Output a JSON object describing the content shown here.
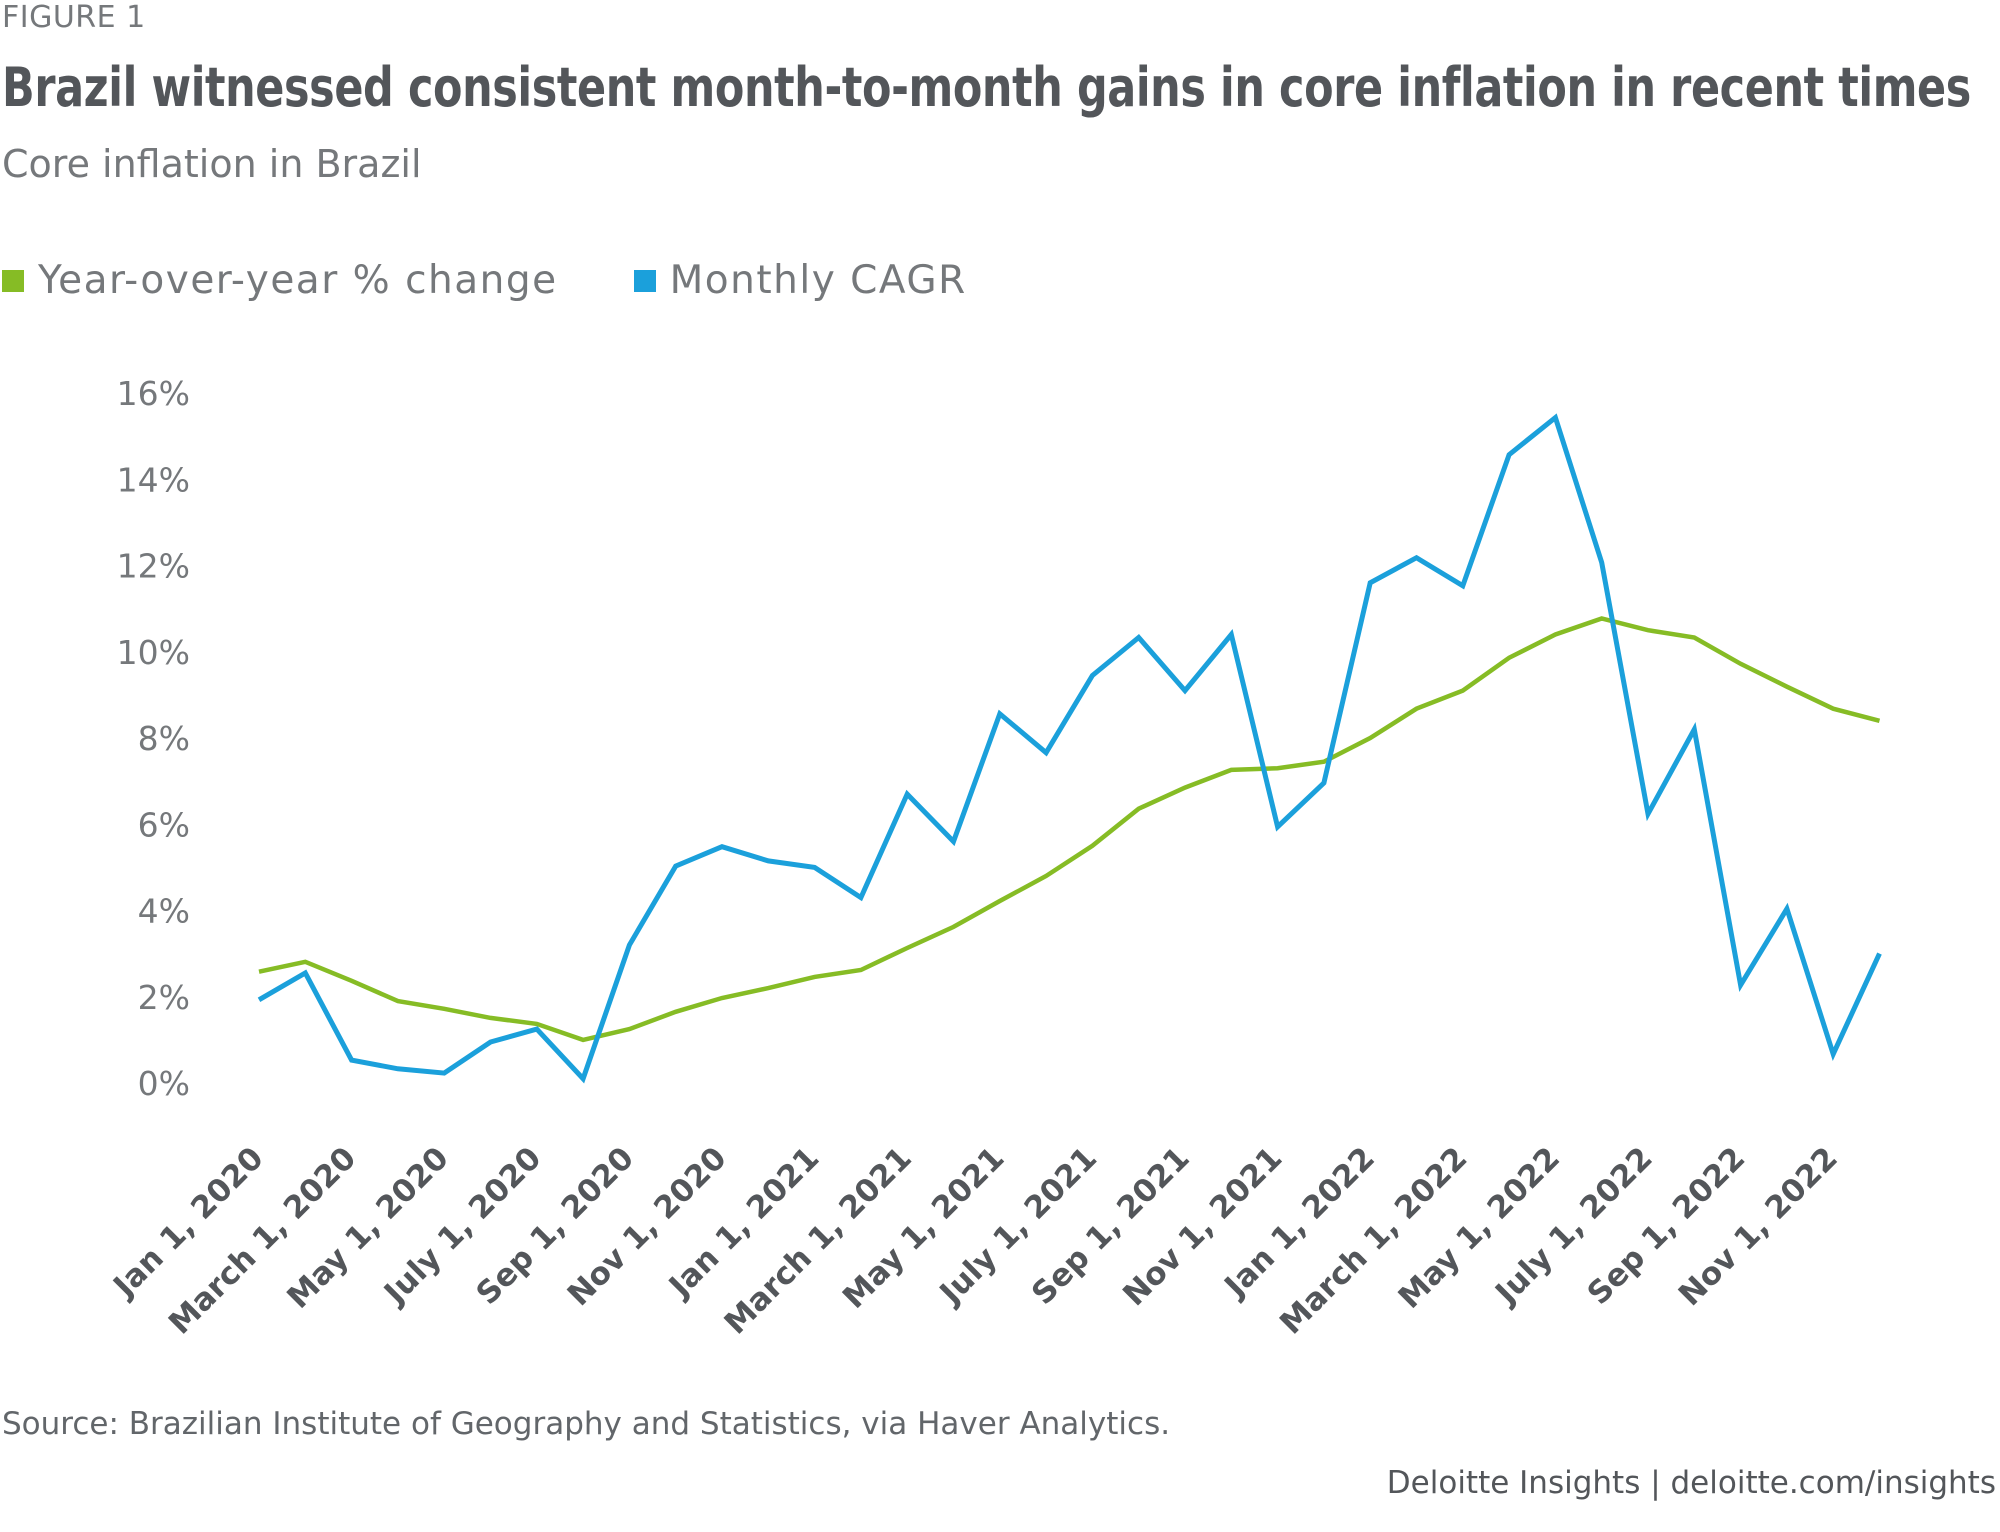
{
  "header": {
    "figure_label": "FIGURE 1",
    "title": "Brazil witnessed consistent month-to-month gains in core inflation in recent times",
    "subtitle": "Core inflation in Brazil"
  },
  "legend": [
    {
      "label": "Year-over-year % change",
      "color": "#86BC25"
    },
    {
      "label": "Monthly CAGR",
      "color": "#1BA0DB"
    }
  ],
  "footer": {
    "source": "Source: Brazilian Institute of Geography and Statistics, via Haver Analytics.",
    "credit": "Deloitte Insights | deloitte.com/insights"
  },
  "chart_data": {
    "type": "line",
    "title": "Brazil witnessed consistent month-to-month gains in core inflation in recent times",
    "subtitle": "Core inflation in Brazil",
    "xlabel": "",
    "ylabel": "",
    "ylim": [
      0,
      16
    ],
    "yticks": [
      0,
      2,
      4,
      6,
      8,
      10,
      12,
      14,
      16
    ],
    "ytick_labels": [
      "0%",
      "2%",
      "4%",
      "6%",
      "8%",
      "10%",
      "12%",
      "14%",
      "16%"
    ],
    "grid": false,
    "legend_position": "top-left",
    "x": [
      "Jan 2020",
      "Feb 2020",
      "Mar 2020",
      "Apr 2020",
      "May 2020",
      "Jun 2020",
      "Jul 2020",
      "Aug 2020",
      "Sep 2020",
      "Oct 2020",
      "Nov 2020",
      "Dec 2020",
      "Jan 2021",
      "Feb 2021",
      "Mar 2021",
      "Apr 2021",
      "May 2021",
      "Jun 2021",
      "Jul 2021",
      "Aug 2021",
      "Sep 2021",
      "Oct 2021",
      "Nov 2021",
      "Dec 2021",
      "Jan 2022",
      "Feb 2022",
      "Mar 2022",
      "Apr 2022",
      "May 2022",
      "Jun 2022",
      "Jul 2022",
      "Aug 2022",
      "Sep 2022",
      "Oct 2022",
      "Nov 2022",
      "Dec 2022"
    ],
    "xtick_labels": [
      {
        "index": 0,
        "label": "Jan 1, 2020"
      },
      {
        "index": 2,
        "label": "March 1, 2020"
      },
      {
        "index": 4,
        "label": "May 1, 2020"
      },
      {
        "index": 6,
        "label": "July 1, 2020"
      },
      {
        "index": 8,
        "label": "Sep 1, 2020"
      },
      {
        "index": 10,
        "label": "Nov 1, 2020"
      },
      {
        "index": 12,
        "label": "Jan 1, 2021"
      },
      {
        "index": 14,
        "label": "March 1, 2021"
      },
      {
        "index": 16,
        "label": "May 1, 2021"
      },
      {
        "index": 18,
        "label": "July 1, 2021"
      },
      {
        "index": 20,
        "label": "Sep 1, 2021"
      },
      {
        "index": 22,
        "label": "Nov 1, 2021"
      },
      {
        "index": 24,
        "label": "Jan 1, 2022"
      },
      {
        "index": 26,
        "label": "March 1, 2022"
      },
      {
        "index": 28,
        "label": "May 1, 2022"
      },
      {
        "index": 30,
        "label": "July 1, 2022"
      },
      {
        "index": 32,
        "label": "Sep 1, 2022"
      },
      {
        "index": 34,
        "label": "Nov 1, 2022"
      }
    ],
    "series": [
      {
        "name": "Year-over-year % change",
        "color": "#86BC25",
        "values": [
          2.58,
          2.81,
          2.37,
          1.9,
          1.72,
          1.51,
          1.37,
          1.0,
          1.25,
          1.65,
          1.97,
          2.2,
          2.46,
          2.62,
          3.13,
          3.62,
          4.22,
          4.8,
          5.5,
          6.36,
          6.85,
          7.26,
          7.3,
          7.45,
          8.0,
          8.68,
          9.1,
          9.86,
          10.4,
          10.77,
          10.5,
          10.33,
          9.72,
          9.19,
          8.68,
          8.4
        ]
      },
      {
        "name": "Monthly CAGR",
        "color": "#1BA0DB",
        "values": [
          1.93,
          2.55,
          0.53,
          0.33,
          0.23,
          0.95,
          1.25,
          0.1,
          3.2,
          5.03,
          5.48,
          5.15,
          5.0,
          4.3,
          6.7,
          5.6,
          8.56,
          7.66,
          9.45,
          10.33,
          9.1,
          10.4,
          5.94,
          6.96,
          11.6,
          12.18,
          11.53,
          14.57,
          15.43,
          12.07,
          6.24,
          8.2,
          2.27,
          4.04,
          0.67,
          3.0
        ]
      }
    ]
  }
}
